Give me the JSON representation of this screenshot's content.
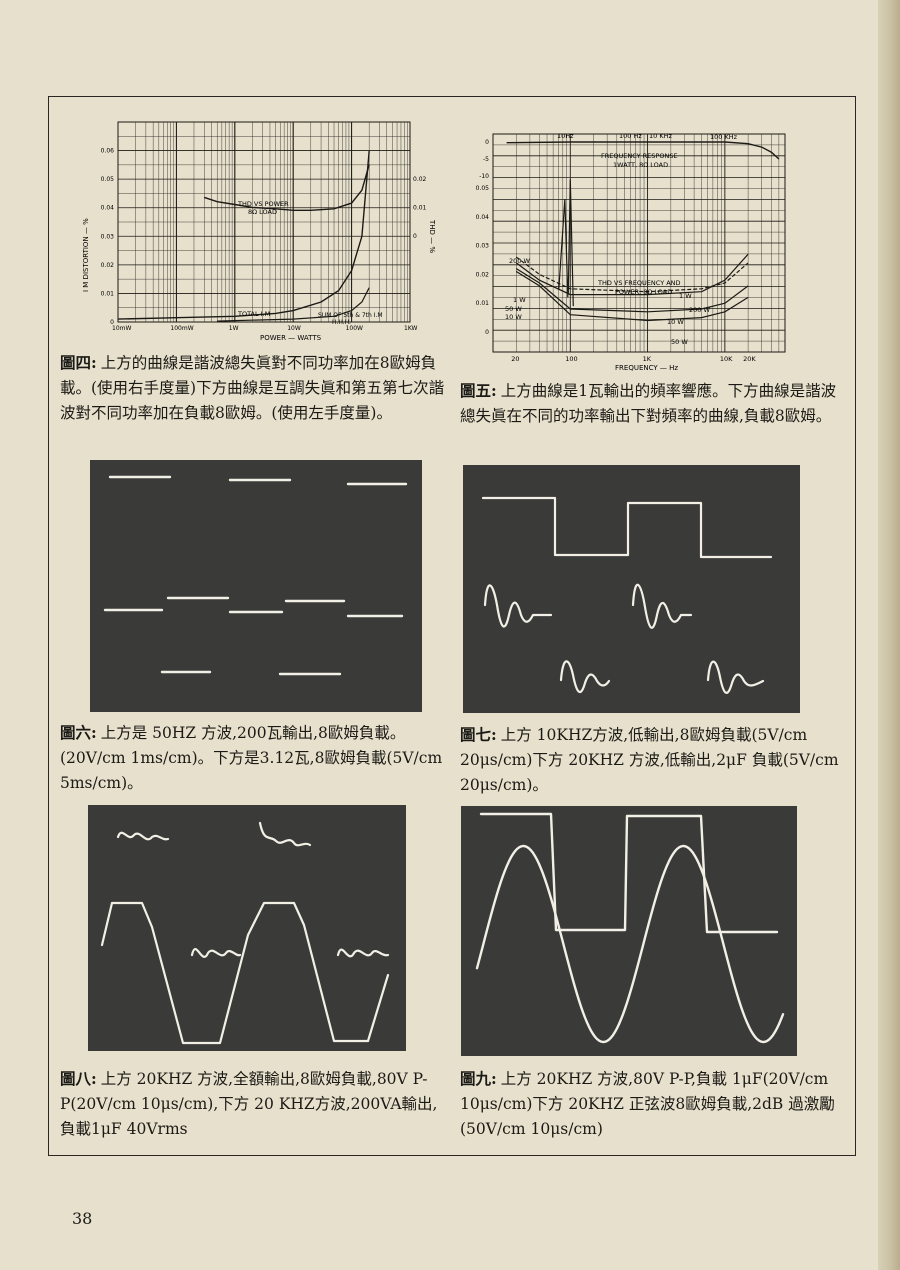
{
  "page_number": "38",
  "fig4": {
    "label": "圖四:",
    "caption": "上方的曲線是諧波總失眞對不同功率加在8歐姆負載。(使用右手度量)下方曲線是互調失眞和第五第七次諧波對不同功率加在負載8歐姆。(使用左手度量)。",
    "chart_data": {
      "type": "line",
      "xlabel": "POWER — WATTS",
      "ylabel_left": "I M DISTORTION — %",
      "ylabel_right": "THD — %",
      "x_ticks": [
        "10mW",
        "100mW",
        "1W",
        "10W",
        "100W",
        "1KW"
      ],
      "y_ticks_left": [
        "0",
        "0.01",
        "0.02",
        "0.03",
        "0.04",
        "0.05",
        "0.06"
      ],
      "y_ticks_right": [
        "0",
        "0.01",
        "0.02"
      ],
      "annotations": [
        "THD VS POWER",
        "8Ω LOAD",
        "TOTAL I.M",
        "SUM OF 5th & 7th I.M",
        "H.H.H."
      ],
      "series": [
        {
          "name": "THD VS POWER",
          "x": [
            0.3,
            0.5,
            1,
            2,
            5,
            10,
            20,
            50,
            100,
            150,
            200
          ],
          "y": [
            0.0135,
            0.012,
            0.011,
            0.01,
            0.0095,
            0.009,
            0.009,
            0.0095,
            0.0115,
            0.016,
            0.025
          ]
        },
        {
          "name": "TOTAL I.M",
          "x": [
            0.01,
            0.1,
            1,
            5,
            10,
            30,
            60,
            100,
            150,
            200
          ],
          "y": [
            0.001,
            0.0015,
            0.002,
            0.003,
            0.004,
            0.007,
            0.011,
            0.018,
            0.03,
            0.06
          ]
        },
        {
          "name": "SUM OF 5th & 7th I.M",
          "x": [
            0.5,
            1,
            10,
            50,
            100,
            150,
            200
          ],
          "y": [
            0.0003,
            0.0005,
            0.001,
            0.002,
            0.004,
            0.007,
            0.012
          ]
        }
      ]
    }
  },
  "fig5": {
    "label": "圖五:",
    "caption": "上方曲線是1瓦輸出的頻率響應。下方曲線是諧波總失眞在不同的功率輸出下對頻率的曲線,負載8歐姆。",
    "chart_data": {
      "type": "line",
      "xlabel": "FREQUENCY — Hz",
      "x_ticks": [
        "20",
        "100",
        "1K",
        "10K",
        "20K"
      ],
      "y_ticks_top": [
        "0",
        "-5",
        "-10"
      ],
      "y_ticks": [
        "0",
        "0.01",
        "0.02",
        "0.03",
        "0.04",
        "0.05"
      ],
      "annotations": [
        "10Hz",
        "100 Hz",
        "10 KHz",
        "100 KHz",
        "FREQUENCY RESPONSE",
        "1WATT, 8Ω LOAD",
        "THD VS FREQUENCY AND",
        "POWER, 8Ω LOAD"
      ],
      "series": [
        {
          "name": "200 W",
          "x": [
            20,
            40,
            100,
            1000,
            5000,
            10000,
            20000
          ],
          "y": [
            0.026,
            0.02,
            0.015,
            0.014,
            0.015,
            0.017,
            0.024
          ]
        },
        {
          "name": "1 W",
          "x": [
            20,
            40,
            100,
            1000,
            5000,
            10000,
            20000
          ],
          "y": [
            0.024,
            0.018,
            0.013,
            0.013,
            0.014,
            0.018,
            0.027
          ]
        },
        {
          "name": "50 W",
          "x": [
            20,
            40,
            100,
            1000,
            5000,
            10000,
            20000
          ],
          "y": [
            0.022,
            0.017,
            0.008,
            0.007,
            0.008,
            0.01,
            0.016
          ]
        },
        {
          "name": "10 W",
          "x": [
            20,
            40,
            100,
            1000,
            5000,
            10000,
            20000
          ],
          "y": [
            0.021,
            0.016,
            0.006,
            0.004,
            0.005,
            0.007,
            0.012
          ]
        }
      ]
    }
  },
  "fig6": {
    "label": "圖六:",
    "caption": "上方是 50HZ 方波,200瓦輸出,8歐姆負載。(20V/cm 1ms/cm)。下方是3.12瓦,8歐姆負載(5V/cm 5ms/cm)。"
  },
  "fig7": {
    "label": "圖七:",
    "caption": "上方 10KHZ方波,低輸出,8歐姆負載(5V/cm 20μs/cm)下方 20KHZ 方波,低輸出,2μF 負載(5V/cm 20μs/cm)。"
  },
  "fig8": {
    "label": "圖八:",
    "caption": "上方 20KHZ 方波,全額輸出,8歐姆負載,80V P-P(20V/cm 10μs/cm),下方 20 KHZ方波,200VA輸出,負載1μF 40Vrms"
  },
  "fig9": {
    "label": "圖九:",
    "caption": "上方 20KHZ 方波,80V P-P,負載 1μF(20V/cm 10μs/cm)下方 20KHZ 正弦波8歐姆負載,2dB 過激勵(50V/cm 10μs/cm)"
  }
}
